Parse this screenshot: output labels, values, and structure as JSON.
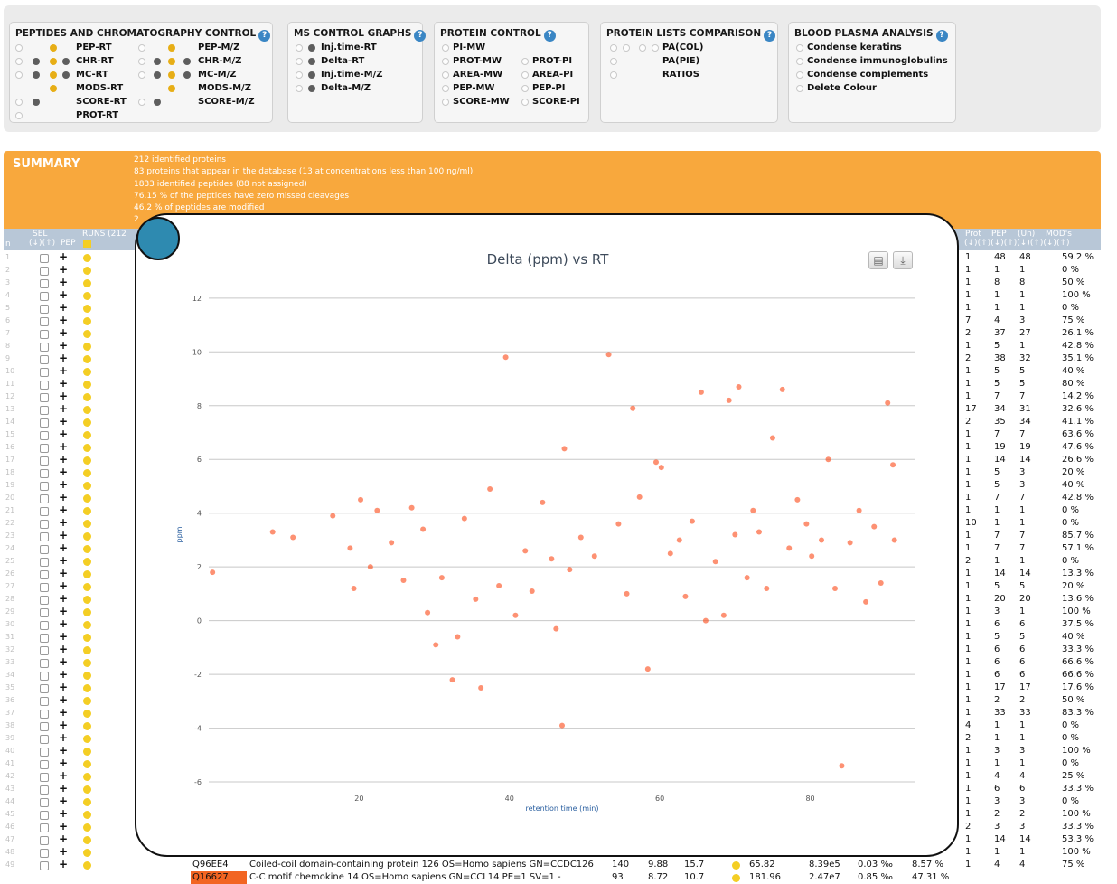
{
  "panels": {
    "chromatography": {
      "title": "PEPTIDES AND CHROMATOGRAPHY CONTROL",
      "help": "?",
      "left_items": [
        "PEP-RT",
        "CHR-RT",
        "MC-RT",
        "MODS-RT",
        "SCORE-RT",
        "PROT-RT"
      ],
      "right_items": [
        "PEP-M/Z",
        "CHR-M/Z",
        "MC-M/Z",
        "MODS-M/Z",
        "SCORE-M/Z"
      ]
    },
    "ms_control": {
      "title": "MS CONTROL GRAPHS",
      "help": "?",
      "items": [
        "Inj.time-RT",
        "Delta-RT",
        "Inj.time-M/Z",
        "Delta-M/Z"
      ]
    },
    "protein_control": {
      "title": "PROTEIN CONTROL",
      "help": "?",
      "left_items": [
        "PI-MW",
        "PROT-MW",
        "AREA-MW",
        "PEP-MW",
        "SCORE-MW"
      ],
      "right_items": [
        "PROT-PI",
        "AREA-PI",
        "PEP-PI",
        "SCORE-PI"
      ]
    },
    "lists_comparison": {
      "title": "PROTEIN LISTS COMPARISON",
      "help": "?",
      "items": [
        "PA(COL)",
        "PA(PIE)",
        "RATIOS"
      ]
    },
    "blood_plasma": {
      "title": "BLOOD PLASMA ANALYSIS",
      "help": "?",
      "items": [
        "Condense keratins",
        "Condense immunoglobulins",
        "Condense complements",
        "Delete Colour"
      ]
    }
  },
  "summary": {
    "title": "SUMMARY",
    "lines": [
      "212 identified proteins",
      "83 proteins that appear in the database (13 at concentrations less than 100 ng/ml)",
      "1833 identified peptides (88 not assigned)",
      "76.15 % of the peptides have zero missed cleavages",
      "46.2 % of peptides are modified",
      "2"
    ]
  },
  "table_header": {
    "n": "n",
    "sel": "SEL",
    "sel_arrows": "(↓)(↑)",
    "pep": "PEP",
    "runs": "RUNS (212",
    "prot": "Prot",
    "pep2": "PEP",
    "un": "(Un)",
    "mods": "MOD's",
    "right_arrows": "(↓)(↑)(↓)(↑)(↓)(↑)(↓)(↑)"
  },
  "row_numbers": [
    "1",
    "2",
    "3",
    "4",
    "5",
    "6",
    "7",
    "8",
    "9",
    "10",
    "11",
    "12",
    "13",
    "14",
    "15",
    "16",
    "17",
    "18",
    "19",
    "20",
    "21",
    "22",
    "23",
    "24",
    "25",
    "26",
    "27",
    "28",
    "29",
    "30",
    "31",
    "32",
    "33",
    "34",
    "35",
    "36",
    "37",
    "38",
    "39",
    "40",
    "41",
    "42",
    "43",
    "44",
    "45",
    "46",
    "47",
    "48",
    "49"
  ],
  "right_rows": [
    [
      "1",
      "48",
      "48",
      "59.2 %"
    ],
    [
      "1",
      "1",
      "1",
      "0 %"
    ],
    [
      "1",
      "8",
      "8",
      "50 %"
    ],
    [
      "1",
      "1",
      "1",
      "100 %"
    ],
    [
      "1",
      "1",
      "1",
      "0 %"
    ],
    [
      "7",
      "4",
      "3",
      "75 %"
    ],
    [
      "2",
      "37",
      "27",
      "26.1 %"
    ],
    [
      "1",
      "5",
      "1",
      "42.8 %"
    ],
    [
      "2",
      "38",
      "32",
      "35.1 %"
    ],
    [
      "1",
      "5",
      "5",
      "40 %"
    ],
    [
      "1",
      "5",
      "5",
      "80 %"
    ],
    [
      "1",
      "7",
      "7",
      "14.2 %"
    ],
    [
      "17",
      "34",
      "31",
      "32.6 %"
    ],
    [
      "2",
      "35",
      "34",
      "41.1 %"
    ],
    [
      "1",
      "7",
      "7",
      "63.6 %"
    ],
    [
      "1",
      "19",
      "19",
      "47.6 %"
    ],
    [
      "1",
      "14",
      "14",
      "26.6 %"
    ],
    [
      "1",
      "5",
      "3",
      "20 %"
    ],
    [
      "1",
      "5",
      "3",
      "40 %"
    ],
    [
      "1",
      "7",
      "7",
      "42.8 %"
    ],
    [
      "1",
      "1",
      "1",
      "0 %"
    ],
    [
      "10",
      "1",
      "1",
      "0 %"
    ],
    [
      "1",
      "7",
      "7",
      "85.7 %"
    ],
    [
      "1",
      "7",
      "7",
      "57.1 %"
    ],
    [
      "2",
      "1",
      "1",
      "0 %"
    ],
    [
      "1",
      "14",
      "14",
      "13.3 %"
    ],
    [
      "1",
      "5",
      "5",
      "20 %"
    ],
    [
      "1",
      "20",
      "20",
      "13.6 %"
    ],
    [
      "1",
      "3",
      "1",
      "100 %"
    ],
    [
      "1",
      "6",
      "6",
      "37.5 %"
    ],
    [
      "1",
      "5",
      "5",
      "40 %"
    ],
    [
      "1",
      "6",
      "6",
      "33.3 %"
    ],
    [
      "1",
      "6",
      "6",
      "66.6 %"
    ],
    [
      "1",
      "6",
      "6",
      "66.6 %"
    ],
    [
      "1",
      "17",
      "17",
      "17.6 %"
    ],
    [
      "1",
      "2",
      "2",
      "50 %"
    ],
    [
      "1",
      "33",
      "33",
      "83.3 %"
    ],
    [
      "4",
      "1",
      "1",
      "0 %"
    ],
    [
      "2",
      "1",
      "1",
      "0 %"
    ],
    [
      "1",
      "3",
      "3",
      "100 %"
    ],
    [
      "1",
      "1",
      "1",
      "0 %"
    ],
    [
      "1",
      "4",
      "4",
      "25 %"
    ],
    [
      "1",
      "6",
      "6",
      "33.3 %"
    ],
    [
      "1",
      "3",
      "3",
      "0 %"
    ],
    [
      "1",
      "2",
      "2",
      "100 %"
    ],
    [
      "2",
      "3",
      "3",
      "33.3 %"
    ],
    [
      "1",
      "14",
      "14",
      "53.3 %"
    ],
    [
      "1",
      "1",
      "1",
      "100 %"
    ],
    [
      "1",
      "4",
      "4",
      "75 %"
    ]
  ],
  "bottom_rows": [
    {
      "acc": "Q96EE4",
      "desc": "Coiled-coil domain-containing protein 126 OS=Homo sapiens GN=CCDC126",
      "v1": "140",
      "v2": "9.88",
      "v3": "15.7",
      "v4": "65.82",
      "v5": "8.39e5",
      "v6": "0.03 ‰",
      "v7": "8.57 %",
      "highlight": ""
    },
    {
      "acc": "Q16627",
      "desc": "C-C motif chemokine 14 OS=Homo sapiens GN=CCL14 PE=1 SV=1 -",
      "v1": "93",
      "v2": "8.72",
      "v3": "10.7",
      "v4": "181.96",
      "v5": "2.47e7",
      "v6": "0.85 ‰",
      "v7": "47.31 %",
      "highlight": "#f26522"
    }
  ],
  "chart": {
    "print_icon": "printer-icon",
    "download_icon": "download-icon",
    "marker_color": "#fb4716"
  },
  "chart_data": {
    "type": "scatter",
    "title": "Delta (ppm) vs RT",
    "xlabel": "retention time (min)",
    "ylabel": "ppm",
    "xlim": [
      0,
      94
    ],
    "ylim": [
      -6.2,
      12.6
    ],
    "xticks": [
      20,
      40,
      60,
      80
    ],
    "yticks": [
      12,
      10,
      8,
      6,
      4,
      2,
      0,
      -2,
      -4,
      -6
    ],
    "grid": true,
    "points": [
      [
        0.5,
        1.8
      ],
      [
        8.5,
        3.3
      ],
      [
        11.2,
        3.1
      ],
      [
        16.5,
        3.9
      ],
      [
        18.8,
        2.7
      ],
      [
        19.3,
        1.2
      ],
      [
        20.2,
        4.5
      ],
      [
        21.5,
        2.0
      ],
      [
        22.4,
        4.1
      ],
      [
        24.3,
        2.9
      ],
      [
        25.9,
        1.5
      ],
      [
        27.0,
        4.2
      ],
      [
        28.5,
        3.4
      ],
      [
        29.1,
        0.3
      ],
      [
        30.2,
        -0.9
      ],
      [
        31.0,
        1.6
      ],
      [
        32.4,
        -2.2
      ],
      [
        33.1,
        -0.6
      ],
      [
        34.0,
        3.8
      ],
      [
        35.5,
        0.8
      ],
      [
        36.2,
        -2.5
      ],
      [
        37.4,
        4.9
      ],
      [
        38.6,
        1.3
      ],
      [
        39.5,
        9.8
      ],
      [
        40.8,
        0.2
      ],
      [
        42.1,
        2.6
      ],
      [
        43.0,
        1.1
      ],
      [
        44.4,
        4.4
      ],
      [
        45.6,
        2.3
      ],
      [
        46.2,
        -0.3
      ],
      [
        47.0,
        -3.9
      ],
      [
        47.3,
        6.4
      ],
      [
        48.0,
        1.9
      ],
      [
        49.5,
        3.1
      ],
      [
        51.3,
        2.4
      ],
      [
        53.2,
        9.9
      ],
      [
        54.5,
        3.6
      ],
      [
        55.6,
        1.0
      ],
      [
        56.4,
        7.9
      ],
      [
        57.3,
        4.6
      ],
      [
        58.4,
        -1.8
      ],
      [
        59.5,
        5.9
      ],
      [
        60.2,
        5.7
      ],
      [
        61.4,
        2.5
      ],
      [
        62.6,
        3.0
      ],
      [
        63.4,
        0.9
      ],
      [
        64.3,
        3.7
      ],
      [
        65.5,
        8.5
      ],
      [
        66.1,
        0.0
      ],
      [
        67.4,
        2.2
      ],
      [
        68.5,
        0.2
      ],
      [
        69.2,
        8.2
      ],
      [
        70.0,
        3.2
      ],
      [
        70.5,
        8.7
      ],
      [
        71.6,
        1.6
      ],
      [
        72.4,
        4.1
      ],
      [
        73.2,
        3.3
      ],
      [
        74.2,
        1.2
      ],
      [
        75.0,
        6.8
      ],
      [
        76.3,
        8.6
      ],
      [
        77.2,
        2.7
      ],
      [
        78.3,
        4.5
      ],
      [
        79.5,
        3.6
      ],
      [
        80.2,
        2.4
      ],
      [
        81.5,
        3.0
      ],
      [
        82.4,
        6.0
      ],
      [
        83.3,
        1.2
      ],
      [
        84.2,
        -5.4
      ],
      [
        85.3,
        2.9
      ],
      [
        86.5,
        4.1
      ],
      [
        87.4,
        0.7
      ],
      [
        88.5,
        3.5
      ],
      [
        89.4,
        1.4
      ],
      [
        90.3,
        8.1
      ],
      [
        91.0,
        5.8
      ],
      [
        91.2,
        3.0
      ]
    ]
  }
}
